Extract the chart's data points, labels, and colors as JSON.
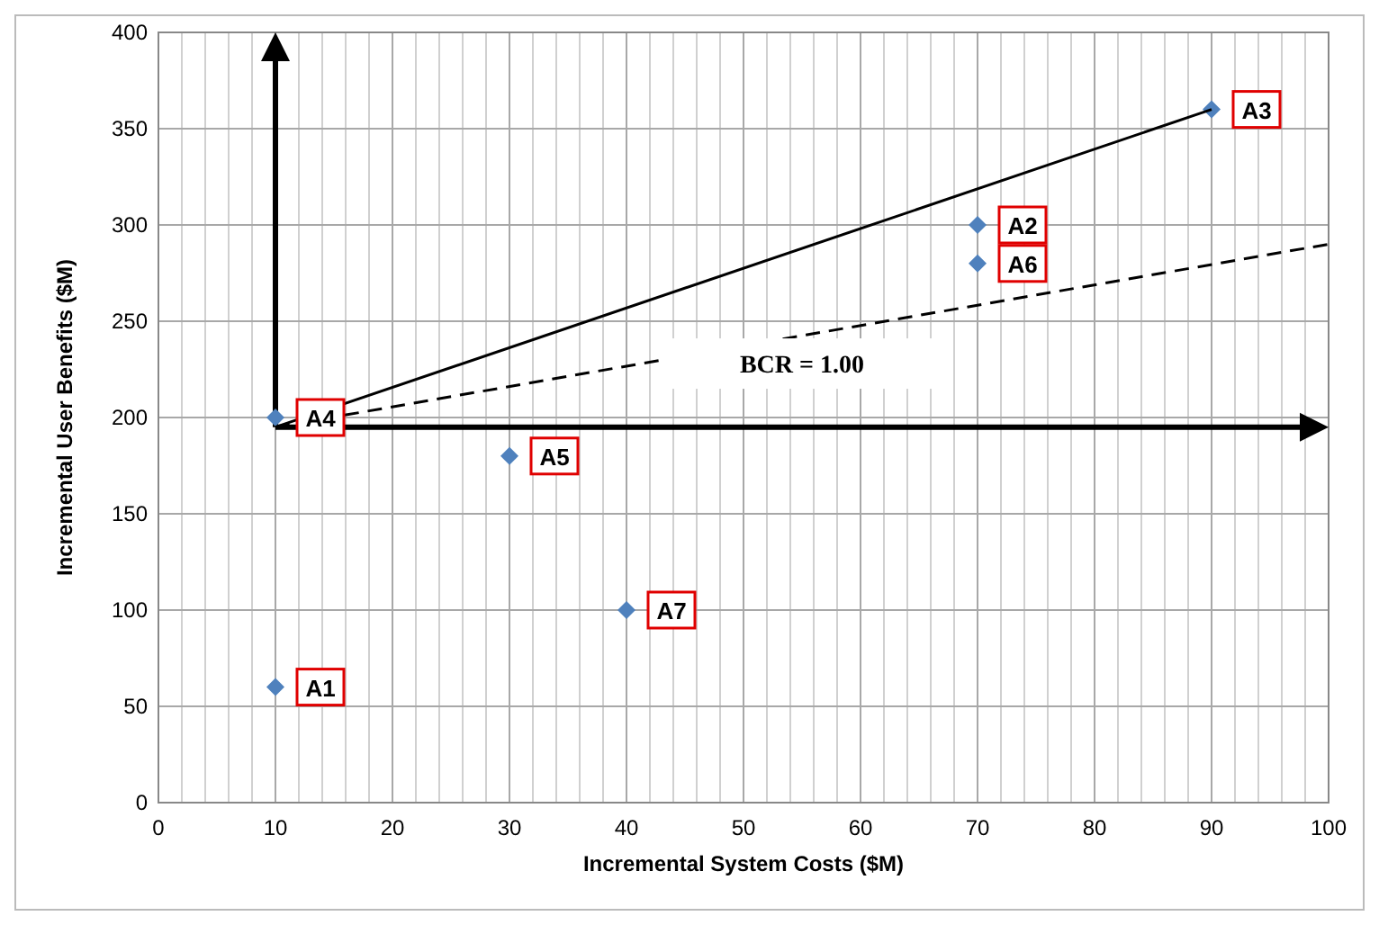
{
  "chart_data": {
    "type": "scatter",
    "xlabel": "Incremental System Costs ($M)",
    "ylabel": "Incremental User Benefits ($M)",
    "xlim": [
      0,
      100
    ],
    "ylim": [
      0,
      400
    ],
    "xticks": [
      0,
      {
        "value": 2,
        "label": null
      },
      {
        "value": 4,
        "label": null
      },
      {
        "value": 6,
        "label": null
      },
      {
        "value": 8,
        "label": null
      },
      10,
      {
        "value": 12,
        "label": null
      },
      {
        "value": 14,
        "label": null
      },
      {
        "value": 16,
        "label": null
      },
      {
        "value": 18,
        "label": null
      },
      20,
      {
        "value": 22,
        "label": null
      },
      {
        "value": 24,
        "label": null
      },
      {
        "value": 26,
        "label": null
      },
      {
        "value": 28,
        "label": null
      },
      30,
      {
        "value": 32,
        "label": null
      },
      {
        "value": 34,
        "label": null
      },
      {
        "value": 36,
        "label": null
      },
      {
        "value": 38,
        "label": null
      },
      40,
      {
        "value": 42,
        "label": null
      },
      {
        "value": 44,
        "label": null
      },
      {
        "value": 46,
        "label": null
      },
      {
        "value": 48,
        "label": null
      },
      50,
      {
        "value": 52,
        "label": null
      },
      {
        "value": 54,
        "label": null
      },
      {
        "value": 56,
        "label": null
      },
      {
        "value": 58,
        "label": null
      },
      60,
      {
        "value": 62,
        "label": null
      },
      {
        "value": 64,
        "label": null
      },
      {
        "value": 66,
        "label": null
      },
      {
        "value": 68,
        "label": null
      },
      70,
      {
        "value": 72,
        "label": null
      },
      {
        "value": 74,
        "label": null
      },
      {
        "value": 76,
        "label": null
      },
      {
        "value": 78,
        "label": null
      },
      80,
      {
        "value": 82,
        "label": null
      },
      {
        "value": 84,
        "label": null
      },
      {
        "value": 86,
        "label": null
      },
      {
        "value": 88,
        "label": null
      },
      90,
      {
        "value": 92,
        "label": null
      },
      {
        "value": 94,
        "label": null
      },
      {
        "value": 96,
        "label": null
      },
      {
        "value": 98,
        "label": null
      },
      100
    ],
    "yticks": [
      0,
      50,
      100,
      150,
      200,
      250,
      300,
      350,
      400
    ],
    "grid": true,
    "ref_lines": [
      {
        "axis": "x",
        "value": 10,
        "color": "#000000"
      },
      {
        "axis": "y",
        "value": 195,
        "color": "#000000"
      }
    ],
    "series": [
      {
        "color": "#4f81bd",
        "marker": "diamond",
        "x": [
          10,
          70,
          90,
          10,
          30,
          70,
          40
        ],
        "values": [
          60,
          300,
          360,
          200,
          180,
          280,
          100
        ]
      },
      {
        "type": "line",
        "color": "#000000",
        "line_style": "solid",
        "x": [
          10,
          90
        ],
        "values": [
          195,
          360
        ]
      },
      {
        "type": "line",
        "color": "#000000",
        "line_style": "dashed",
        "x": [
          10,
          100
        ],
        "values": [
          195,
          290
        ]
      }
    ],
    "annotations": [
      {
        "text": "A1",
        "x": 10,
        "y": 60
      },
      {
        "text": "A2",
        "x": 70,
        "y": 300
      },
      {
        "text": "A3",
        "x": 90,
        "y": 360
      },
      {
        "text": "A4",
        "x": 10,
        "y": 200
      },
      {
        "text": "A5",
        "x": 30,
        "y": 180
      },
      {
        "text": "A6",
        "x": 70,
        "y": 280
      },
      {
        "text": "A7",
        "x": 40,
        "y": 100
      },
      "BCR = 1.00"
    ]
  }
}
